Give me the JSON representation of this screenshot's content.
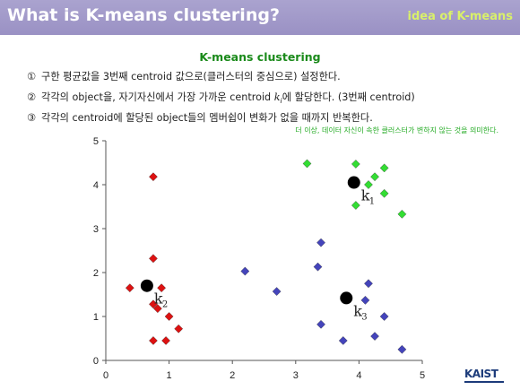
{
  "header": {
    "title": "What is K-means clustering?",
    "topic": "idea of K-means"
  },
  "content": {
    "subtitle": "K-means clustering",
    "steps": [
      {
        "num": "①",
        "text": "구한 평균값을 3번째 centroid 값으로(클러스터의 중심으로) 설정한다."
      },
      {
        "num": "②",
        "text": "각각의 object을, 자기자신에서 가장 가까운 centroid ",
        "var": "k",
        "sub": "i",
        "after": "에 할당한다. (3번째 centroid)"
      },
      {
        "num": "③",
        "text": "각각의 centroid에 할당된 object들의 멤버쉽이 변화가 없을 때까지 반복한다."
      }
    ],
    "note": "더 이상, 데이터 자신이 속한 클러스터가 변하지 않는 것을 의미한다."
  },
  "logo": "KAIST",
  "colors": {
    "header": "#9a91c4",
    "title": "#ffffff",
    "topic": "#d9f06a",
    "subtitle": "#1a8a1a",
    "note": "#22aa22",
    "red": "#dd1111",
    "green": "#33dd33",
    "blue": "#4444bb",
    "centroid": "#000000"
  },
  "chart_data": {
    "type": "scatter",
    "xlim": [
      0,
      5
    ],
    "ylim": [
      0,
      5
    ],
    "xticks": [
      0,
      1,
      2,
      3,
      4,
      5
    ],
    "yticks": [
      0,
      1,
      2,
      3,
      4,
      5
    ],
    "grid": false,
    "series": [
      {
        "marker": "diamond",
        "color": "#dd1111",
        "points": [
          [
            0.75,
            4.18
          ],
          [
            0.75,
            2.32
          ],
          [
            0.38,
            1.65
          ],
          [
            0.88,
            1.65
          ],
          [
            0.75,
            1.28
          ],
          [
            0.82,
            1.18
          ],
          [
            1.0,
            1.0
          ],
          [
            1.15,
            0.72
          ],
          [
            0.75,
            0.45
          ],
          [
            0.95,
            0.45
          ]
        ]
      },
      {
        "marker": "diamond",
        "color": "#33dd33",
        "points": [
          [
            3.18,
            4.48
          ],
          [
            3.95,
            4.47
          ],
          [
            4.4,
            4.38
          ],
          [
            4.25,
            4.18
          ],
          [
            4.15,
            4.0
          ],
          [
            4.4,
            3.8
          ],
          [
            3.95,
            3.53
          ],
          [
            4.68,
            3.33
          ]
        ]
      },
      {
        "marker": "diamond",
        "color": "#4444bb",
        "points": [
          [
            2.2,
            2.03
          ],
          [
            2.7,
            1.57
          ],
          [
            3.4,
            2.68
          ],
          [
            3.35,
            2.13
          ],
          [
            4.15,
            1.75
          ],
          [
            4.1,
            1.37
          ],
          [
            4.4,
            1.0
          ],
          [
            3.4,
            0.82
          ],
          [
            3.75,
            0.45
          ],
          [
            4.25,
            0.55
          ],
          [
            4.68,
            0.25
          ]
        ]
      }
    ],
    "centroids": [
      {
        "name": "k",
        "sub": "1",
        "x": 3.92,
        "y": 4.05
      },
      {
        "name": "k",
        "sub": "2",
        "x": 0.65,
        "y": 1.7
      },
      {
        "name": "k",
        "sub": "3",
        "x": 3.8,
        "y": 1.42
      }
    ]
  }
}
